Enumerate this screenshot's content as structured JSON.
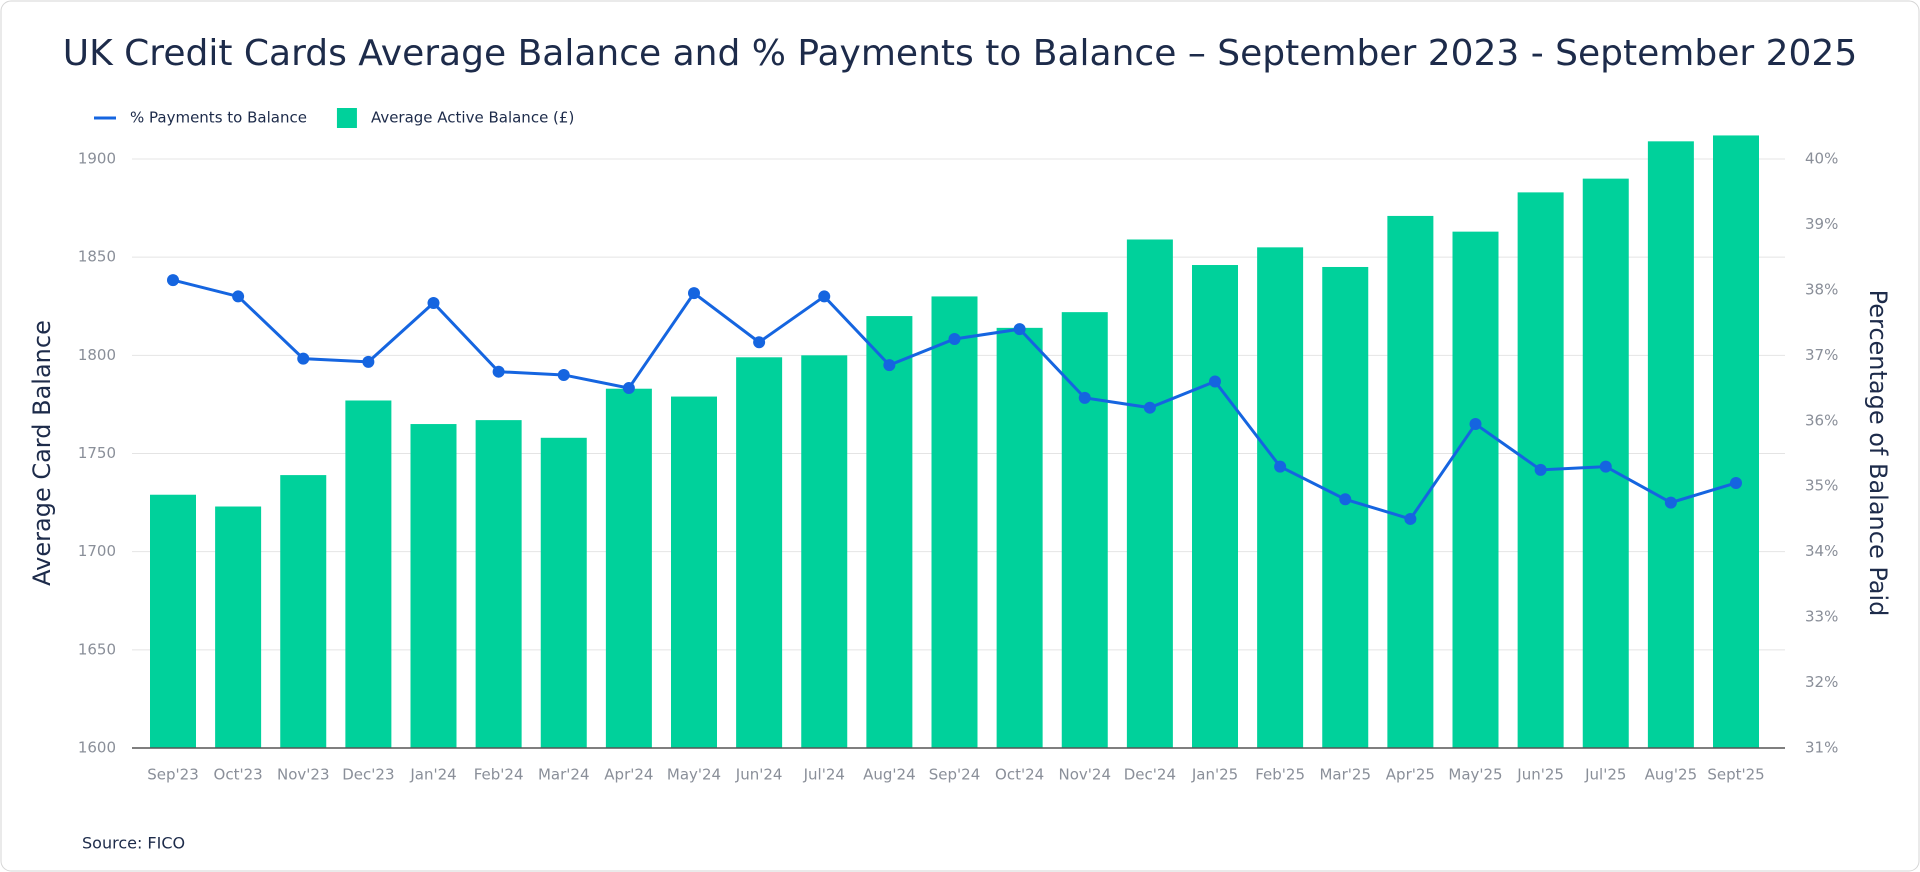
{
  "chart_data": {
    "type": "bar",
    "title": "UK Credit Cards Average Balance and % Payments to Balance – September 2023 - September 2025",
    "categories": [
      "Sep'23",
      "Oct'23",
      "Nov'23",
      "Dec'23",
      "Jan'24",
      "Feb'24",
      "Mar'24",
      "Apr'24",
      "May'24",
      "Jun'24",
      "Jul'24",
      "Aug'24",
      "Sep'24",
      "Oct'24",
      "Nov'24",
      "Dec'24",
      "Jan'25",
      "Feb'25",
      "Mar'25",
      "Apr'25",
      "May'25",
      "Jun'25",
      "Jul'25",
      "Aug'25",
      "Sept'25"
    ],
    "series": [
      {
        "name": "% Payments to Balance",
        "type": "line",
        "axis": "y2",
        "color": "#1565e0",
        "values": [
          38.15,
          37.9,
          36.95,
          36.9,
          37.8,
          36.75,
          36.7,
          36.5,
          37.95,
          37.2,
          37.9,
          36.85,
          37.25,
          37.4,
          36.35,
          36.2,
          36.6,
          35.3,
          34.8,
          34.5,
          35.95,
          35.25,
          35.3,
          34.75,
          35.05
        ]
      },
      {
        "name": "Average Active Balance (£)",
        "type": "bar",
        "axis": "y",
        "color": "#00d19b",
        "values": [
          1729,
          1723,
          1739,
          1777,
          1765,
          1767,
          1758,
          1783,
          1779,
          1799,
          1800,
          1820,
          1830,
          1814,
          1822,
          1859,
          1846,
          1855,
          1845,
          1871,
          1863,
          1883,
          1890,
          1909,
          1912
        ]
      }
    ],
    "ylabel": "Average Card Balance",
    "y2label": "Percentage of Balance Paid",
    "ylim": [
      1600,
      1900
    ],
    "yticks": [
      1600,
      1650,
      1700,
      1750,
      1800,
      1850,
      1900
    ],
    "y2lim": [
      31,
      40
    ],
    "y2ticks": [
      {
        "value": 31,
        "label": "31%"
      },
      {
        "value": 32,
        "label": "32%"
      },
      {
        "value": 33,
        "label": "33%"
      },
      {
        "value": 34,
        "label": "34%"
      },
      {
        "value": 35,
        "label": "35%"
      },
      {
        "value": 36,
        "label": "36%"
      },
      {
        "value": 37,
        "label": "37%"
      },
      {
        "value": 38,
        "label": "38%"
      },
      {
        "value": 39,
        "label": "39%"
      },
      {
        "value": 40,
        "label": "40%"
      }
    ],
    "grid": true,
    "source": "Source: FICO"
  }
}
